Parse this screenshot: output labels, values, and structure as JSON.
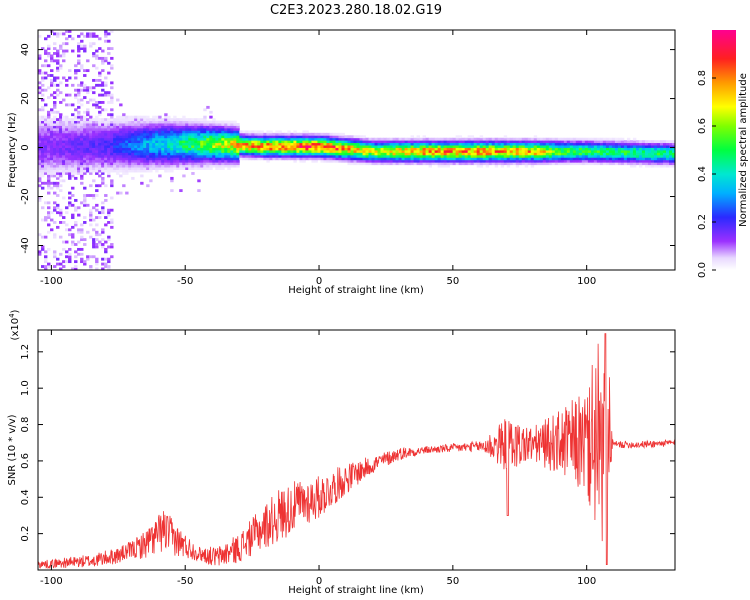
{
  "title": "C2E3.2023.280.18.02.G19",
  "chart_data": [
    {
      "type": "heatmap",
      "xlabel": "Height of straight line (km)",
      "ylabel": "Frequency (Hz)",
      "xlim": [
        -105,
        133
      ],
      "ylim": [
        -50,
        48
      ],
      "x_ticks": [
        -100,
        -50,
        0,
        50,
        100
      ],
      "y_ticks": [
        -40,
        -20,
        0,
        20,
        40
      ],
      "x_tick_labels": [
        "-100",
        "-50",
        "0",
        "50",
        "100"
      ],
      "y_tick_labels": [
        "-40",
        "-20",
        "0",
        "20",
        "40"
      ],
      "colorbar": {
        "label": "Normalized spectral amplitude",
        "range": [
          0,
          1
        ],
        "ticks": [
          0.0,
          0.2,
          0.4,
          0.6,
          0.8
        ],
        "tick_labels": [
          "0.0",
          "0.2",
          "0.4",
          "0.6",
          "0.8"
        ],
        "colormap": "rainbow (white-lavender → violet → blue → cyan → green → yellow → orange → red → magenta)"
      },
      "ridge": {
        "center_frequency": [
          [
            -100,
            0
          ],
          [
            -60,
            1
          ],
          [
            -40,
            1
          ],
          [
            -20,
            0
          ],
          [
            0,
            0
          ],
          [
            20,
            -2
          ],
          [
            50,
            -2
          ],
          [
            80,
            -2
          ],
          [
            100,
            -2
          ],
          [
            133,
            -3
          ]
        ],
        "peak_amplitude": [
          [
            -100,
            0.15
          ],
          [
            -80,
            0.2
          ],
          [
            -70,
            0.3
          ],
          [
            -55,
            0.45
          ],
          [
            -40,
            0.65
          ],
          [
            -25,
            0.85
          ],
          [
            0,
            0.95
          ],
          [
            20,
            0.7
          ],
          [
            40,
            0.85
          ],
          [
            60,
            0.85
          ],
          [
            80,
            0.8
          ],
          [
            90,
            0.6
          ],
          [
            100,
            0.55
          ],
          [
            133,
            0.5
          ]
        ],
        "noise_region_x": [
          -105,
          -78
        ]
      }
    },
    {
      "type": "line",
      "xlabel": "Height of straight line (km)",
      "ylabel": "SNR (10 * v/v)",
      "y_scale_label": "(x10",
      "y_scale_exponent": "4",
      "xlim": [
        -105,
        133
      ],
      "ylim": [
        0,
        1.32
      ],
      "x_ticks": [
        -100,
        -50,
        0,
        50,
        100
      ],
      "y_ticks": [
        0.2,
        0.4,
        0.6,
        0.8,
        1.0,
        1.2
      ],
      "x_tick_labels": [
        "-100",
        "-50",
        "0",
        "50",
        "100"
      ],
      "y_tick_labels": [
        "0.2",
        "0.4",
        "0.6",
        "0.8",
        "1.0",
        "1.2"
      ],
      "series": [
        {
          "color": "#ee3333",
          "envelope": [
            [
              -105,
              0.03
            ],
            [
              -95,
              0.04
            ],
            [
              -85,
              0.05
            ],
            [
              -75,
              0.08
            ],
            [
              -65,
              0.14
            ],
            [
              -58,
              0.22
            ],
            [
              -52,
              0.15
            ],
            [
              -45,
              0.09
            ],
            [
              -38,
              0.07
            ],
            [
              -30,
              0.12
            ],
            [
              -22,
              0.22
            ],
            [
              -15,
              0.3
            ],
            [
              -8,
              0.36
            ],
            [
              0,
              0.4
            ],
            [
              10,
              0.5
            ],
            [
              20,
              0.58
            ],
            [
              30,
              0.64
            ],
            [
              40,
              0.66
            ],
            [
              50,
              0.67
            ],
            [
              60,
              0.68
            ],
            [
              70,
              0.69
            ],
            [
              80,
              0.69
            ],
            [
              90,
              0.7
            ],
            [
              100,
              0.7
            ],
            [
              110,
              0.69
            ],
            [
              120,
              0.69
            ],
            [
              133,
              0.7
            ]
          ],
          "noise_amplitude": [
            [
              -105,
              0.02
            ],
            [
              -70,
              0.05
            ],
            [
              -58,
              0.12
            ],
            [
              -45,
              0.04
            ],
            [
              -30,
              0.08
            ],
            [
              -15,
              0.15
            ],
            [
              0,
              0.12
            ],
            [
              20,
              0.05
            ],
            [
              40,
              0.02
            ],
            [
              60,
              0.03
            ],
            [
              70,
              0.15
            ],
            [
              80,
              0.1
            ],
            [
              90,
              0.18
            ],
            [
              100,
              0.3
            ],
            [
              105,
              0.6
            ],
            [
              110,
              0.02
            ],
            [
              133,
              0.02
            ]
          ]
        }
      ]
    }
  ]
}
